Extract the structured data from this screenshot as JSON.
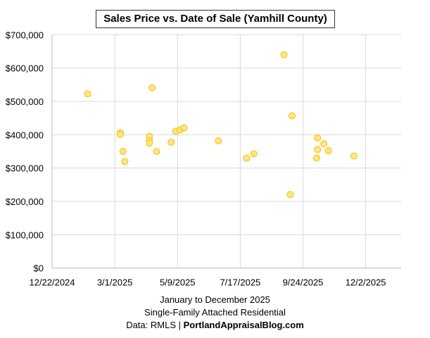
{
  "chart_data": {
    "type": "scatter",
    "title": "Sales Price vs. Date of Sale (Yamhill County)",
    "xlabel": "January to December 2025",
    "subtitle": "Single-Family Attached Residential",
    "source_prefix": "Data: RMLS | ",
    "source_site": "PortlandAppraisalBlog.com",
    "xlim": [
      "2024-12-22",
      "2026-01-10"
    ],
    "x_ticks": [
      "12/22/2024",
      "3/1/2025",
      "5/9/2025",
      "7/17/2025",
      "9/24/2025",
      "12/2/2025"
    ],
    "ylim": [
      0,
      700000
    ],
    "y_ticks": [
      "$0",
      "$100,000",
      "$200,000",
      "$300,000",
      "$400,000",
      "$500,000",
      "$600,000",
      "$700,000"
    ],
    "grid": true,
    "marker_fill": "#FFE38A",
    "marker_stroke": "#F5C400",
    "points": [
      {
        "x": "2025-01-30",
        "y": 522500
      },
      {
        "x": "2025-03-07",
        "y": 405600
      },
      {
        "x": "2025-03-07",
        "y": 400700
      },
      {
        "x": "2025-03-10",
        "y": 350000
      },
      {
        "x": "2025-03-12",
        "y": 319700
      },
      {
        "x": "2025-04-08",
        "y": 395000
      },
      {
        "x": "2025-04-08",
        "y": 381700
      },
      {
        "x": "2025-04-08",
        "y": 375000
      },
      {
        "x": "2025-04-11",
        "y": 540800
      },
      {
        "x": "2025-04-16",
        "y": 350000
      },
      {
        "x": "2025-05-02",
        "y": 377400
      },
      {
        "x": "2025-05-07",
        "y": 410500
      },
      {
        "x": "2025-05-12",
        "y": 414800
      },
      {
        "x": "2025-05-16",
        "y": 420400
      },
      {
        "x": "2025-06-23",
        "y": 381700
      },
      {
        "x": "2025-07-24",
        "y": 330000
      },
      {
        "x": "2025-08-01",
        "y": 343000
      },
      {
        "x": "2025-09-03",
        "y": 640000
      },
      {
        "x": "2025-09-10",
        "y": 220400
      },
      {
        "x": "2025-09-12",
        "y": 457000
      },
      {
        "x": "2025-10-09",
        "y": 330000
      },
      {
        "x": "2025-10-10",
        "y": 390800
      },
      {
        "x": "2025-10-10",
        "y": 355600
      },
      {
        "x": "2025-10-17",
        "y": 373000
      },
      {
        "x": "2025-10-22",
        "y": 352000
      },
      {
        "x": "2025-11-19",
        "y": 336000
      }
    ]
  }
}
